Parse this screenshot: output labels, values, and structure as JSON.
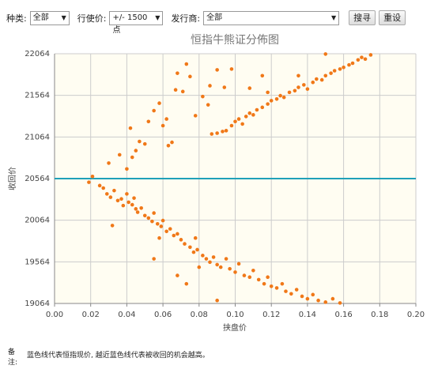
{
  "form": {
    "type_label": "种类:",
    "type_value": "全部",
    "strike_label": "行使价:",
    "strike_value": "+/- 1500点",
    "issuer_label": "发行商:",
    "issuer_value": "全部",
    "search": "搜寻",
    "reset": "重设"
  },
  "chart_data": {
    "type": "scatter",
    "title": "恒指牛熊证分佈图",
    "x_label": "挟盘价",
    "y_label": "收回价",
    "color": "#f07818",
    "background": "#fffdf2",
    "grid": true,
    "reference_line": {
      "value": 20564,
      "color": "#1fa0b8"
    },
    "xlim": [
      0,
      0.2
    ],
    "ylim": [
      19064,
      22064
    ],
    "xticks": [
      {
        "value": 0,
        "label": "0.00"
      },
      {
        "value": 0.02,
        "label": "0.02"
      },
      {
        "value": 0.04,
        "label": "0.04"
      },
      {
        "value": 0.06,
        "label": "0.06"
      },
      {
        "value": 0.08,
        "label": "0.08"
      },
      {
        "value": 0.1,
        "label": "0.10"
      },
      {
        "value": 0.12,
        "label": "0.12"
      },
      {
        "value": 0.14,
        "label": "0.14"
      },
      {
        "value": 0.16,
        "label": "0.16"
      },
      {
        "value": 0.18,
        "label": "0.18"
      },
      {
        "value": 0.2,
        "label": "0.20"
      }
    ],
    "yticks": [
      19064,
      19564,
      20064,
      20564,
      21064,
      21564,
      22064
    ],
    "x": [
      0.019,
      0.021,
      0.025,
      0.027,
      0.029,
      0.031,
      0.033,
      0.035,
      0.037,
      0.038,
      0.04,
      0.041,
      0.043,
      0.044,
      0.046,
      0.048,
      0.05,
      0.052,
      0.054,
      0.055,
      0.057,
      0.059,
      0.06,
      0.062,
      0.064,
      0.066,
      0.068,
      0.07,
      0.072,
      0.075,
      0.077,
      0.079,
      0.082,
      0.084,
      0.086,
      0.088,
      0.09,
      0.092,
      0.095,
      0.097,
      0.1,
      0.102,
      0.105,
      0.108,
      0.11,
      0.113,
      0.116,
      0.118,
      0.12,
      0.123,
      0.126,
      0.128,
      0.131,
      0.134,
      0.137,
      0.14,
      0.143,
      0.146,
      0.15,
      0.154,
      0.158,
      0.032,
      0.045,
      0.058,
      0.055,
      0.078,
      0.08,
      0.068,
      0.073,
      0.09,
      0.087,
      0.09,
      0.093,
      0.095,
      0.098,
      0.1,
      0.102,
      0.104,
      0.106,
      0.108,
      0.11,
      0.112,
      0.115,
      0.118,
      0.12,
      0.123,
      0.125,
      0.127,
      0.13,
      0.133,
      0.135,
      0.138,
      0.14,
      0.143,
      0.145,
      0.148,
      0.15,
      0.153,
      0.155,
      0.158,
      0.16,
      0.163,
      0.165,
      0.168,
      0.17,
      0.172,
      0.175,
      0.15,
      0.135,
      0.118,
      0.108,
      0.115,
      0.03,
      0.036,
      0.04,
      0.043,
      0.045,
      0.047,
      0.05,
      0.042,
      0.052,
      0.055,
      0.058,
      0.06,
      0.062,
      0.063,
      0.065,
      0.067,
      0.068,
      0.071,
      0.073,
      0.075,
      0.078,
      0.082,
      0.085,
      0.086,
      0.09,
      0.094,
      0.098
    ],
    "values": [
      20520,
      20590,
      20480,
      20450,
      20380,
      20340,
      20420,
      20300,
      20320,
      20240,
      20380,
      20280,
      20250,
      20330,
      20160,
      20210,
      20120,
      20090,
      20050,
      20150,
      20020,
      19990,
      20060,
      19930,
      19960,
      19880,
      19900,
      19830,
      19780,
      19740,
      19680,
      19710,
      19640,
      19600,
      19560,
      19620,
      19530,
      19500,
      19600,
      19480,
      19440,
      19540,
      19400,
      19380,
      19460,
      19350,
      19300,
      19380,
      19270,
      19250,
      19300,
      19210,
      19180,
      19230,
      19150,
      19120,
      19170,
      19100,
      19080,
      19120,
      19070,
      20000,
      20200,
      19850,
      19600,
      19850,
      19500,
      19400,
      19300,
      19100,
      21100,
      21110,
      21130,
      21140,
      21200,
      21250,
      21280,
      21220,
      21310,
      21350,
      21330,
      21390,
      21420,
      21460,
      21500,
      21520,
      21560,
      21540,
      21600,
      21620,
      21660,
      21690,
      21640,
      21720,
      21760,
      21750,
      21800,
      21830,
      21860,
      21880,
      21900,
      21930,
      21950,
      21990,
      22020,
      22000,
      22050,
      22060,
      21800,
      21600,
      21650,
      21800,
      20750,
      20850,
      20680,
      20820,
      20900,
      21010,
      20980,
      21170,
      21250,
      21380,
      21470,
      21200,
      21280,
      20960,
      21000,
      21630,
      21830,
      21610,
      21940,
      21790,
      21320,
      21550,
      21450,
      21680,
      21870,
      21660,
      21880
    ]
  },
  "note": {
    "label": "备注:",
    "text": "蓝色线代表恒指现价, 越近蓝色线代表被收回的机会越高。"
  }
}
